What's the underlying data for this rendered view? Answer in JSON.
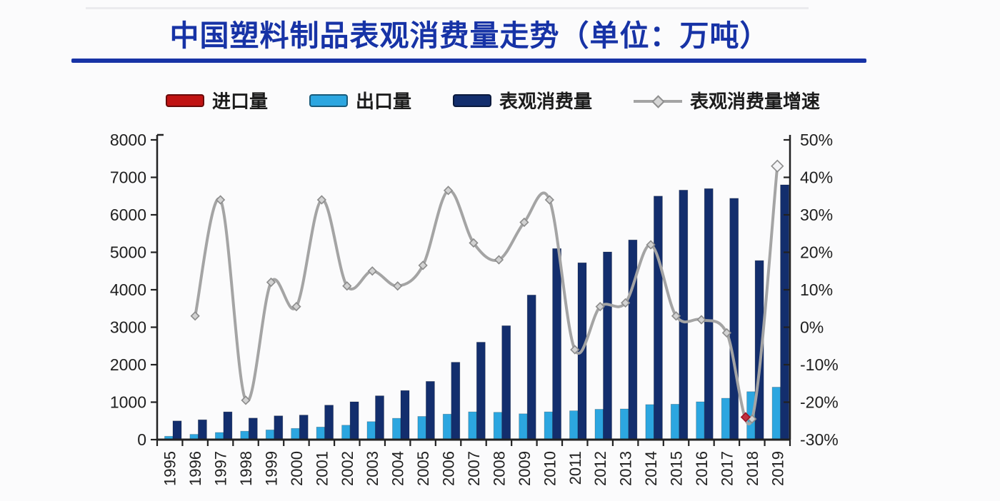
{
  "title": {
    "text": "中国塑料制品表观消费量走势（单位：万吨）"
  },
  "colors": {
    "title_blue": "#1733a6",
    "imports_red": "#c01313",
    "exports_blue": "#2ca6e0",
    "consumption_navy": "#132e6d",
    "growth_gray": "#a4a4a4",
    "axis": "#222222"
  },
  "legend": [
    {
      "label": "进口量",
      "type": "bar",
      "color": "#c01313"
    },
    {
      "label": "出口量",
      "type": "bar",
      "color": "#2ca6e0"
    },
    {
      "label": "表观消费量",
      "type": "bar",
      "color": "#132e6d"
    },
    {
      "label": "表观消费量增速",
      "type": "line",
      "color": "#a4a4a4"
    }
  ],
  "chart_data": {
    "type": "bar",
    "subtype": "grouped-bars-with-line",
    "title": "中国塑料制品表观消费量走势（单位：万吨）",
    "categories": [
      "1995",
      "1996",
      "1997",
      "1998",
      "1999",
      "2000",
      "2001",
      "2002",
      "2003",
      "2004",
      "2005",
      "2006",
      "2007",
      "2008",
      "2009",
      "2010",
      "2011",
      "2012",
      "2013",
      "2014",
      "2015",
      "2016",
      "2017",
      "2018",
      "2019"
    ],
    "series": [
      {
        "name": "进口量",
        "type": "bar",
        "axis": "left",
        "color": "#c01313",
        "values": [
          0,
          0,
          0,
          0,
          0,
          0,
          0,
          0,
          0,
          0,
          0,
          0,
          0,
          0,
          0,
          0,
          0,
          0,
          0,
          0,
          0,
          0,
          0,
          0,
          0
        ],
        "note": "legend entry present but bars too small to be visible"
      },
      {
        "name": "出口量",
        "type": "bar",
        "axis": "left",
        "color": "#2ca6e0",
        "values": [
          90,
          140,
          190,
          225,
          260,
          300,
          335,
          385,
          480,
          570,
          620,
          680,
          740,
          730,
          690,
          740,
          770,
          810,
          820,
          935,
          945,
          1010,
          1105,
          1280,
          1400
        ]
      },
      {
        "name": "表观消费量",
        "type": "bar",
        "axis": "left",
        "color": "#132e6d",
        "values": [
          500,
          530,
          740,
          575,
          635,
          655,
          920,
          1010,
          1170,
          1310,
          1555,
          2065,
          2600,
          3040,
          3860,
          5100,
          4720,
          5010,
          5330,
          6500,
          6660,
          6700,
          6440,
          4780,
          6800
        ]
      },
      {
        "name": "表观消费量增速",
        "type": "line",
        "axis": "right",
        "unit": "%",
        "color": "#a4a4a4",
        "values": [
          null,
          3,
          34,
          -19.5,
          12,
          5.5,
          34,
          11,
          15,
          11,
          16.5,
          36.5,
          22.5,
          18,
          28,
          34,
          -6,
          5.5,
          6.5,
          22,
          3,
          2,
          -1.5,
          -24.5,
          43
        ],
        "marker": "diamond",
        "end_marker": "up-arrow-diamond"
      }
    ],
    "left_axis": {
      "min": 0,
      "max": 8000,
      "step": 1000,
      "tick_labels": [
        "8000",
        "7000",
        "6000",
        "5000",
        "4000",
        "3000",
        "2000",
        "1000",
        "0"
      ]
    },
    "right_axis": {
      "min": -30,
      "max": 50,
      "step": 10,
      "tick_labels": [
        "50%",
        "40%",
        "30%",
        "20%",
        "10%",
        "0%",
        "-10%",
        "-20%",
        "-30%"
      ]
    },
    "grid": false,
    "legend_position": "top",
    "annotations": [
      {
        "type": "red-diamond-marker",
        "category": "2018",
        "value_right_pct": -24,
        "color": "#c03040"
      }
    ]
  }
}
